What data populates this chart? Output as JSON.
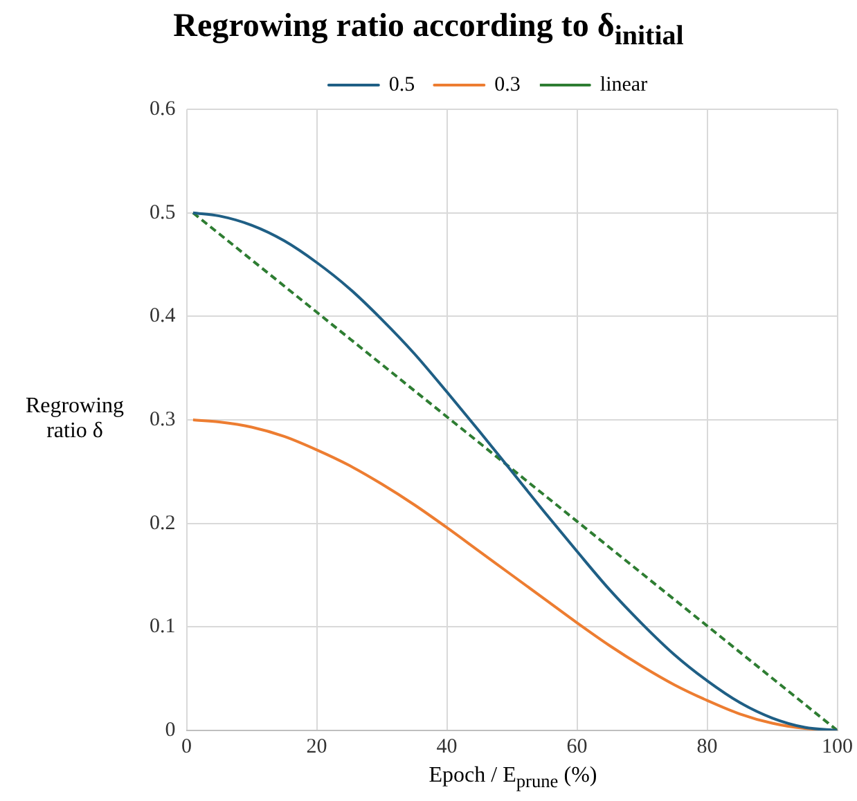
{
  "chart_data": {
    "type": "line",
    "title": "Regrowing ratio according to δ$_{initial}$",
    "xlabel": "Epoch / E$_{prune}$ (%)",
    "ylabel": "Regrowing ratio δ",
    "xlim": [
      0,
      100
    ],
    "xticks": [
      0,
      20,
      40,
      60,
      80,
      100
    ],
    "ylim": [
      0,
      0.6
    ],
    "yticks": [
      0,
      0.1,
      0.2,
      0.3,
      0.4,
      0.5,
      0.6
    ],
    "grid": true,
    "legend": "top",
    "marker": "none",
    "x": [
      1,
      5,
      10,
      15,
      20,
      25,
      30,
      35,
      40,
      45,
      50,
      55,
      60,
      65,
      70,
      75,
      80,
      85,
      90,
      95,
      100
    ],
    "series": [
      {
        "name": "0.5",
        "color": "#1f5f85",
        "line_style": "solid",
        "values": [
          0.5,
          0.497,
          0.488,
          0.473,
          0.452,
          0.427,
          0.397,
          0.364,
          0.327,
          0.289,
          0.25,
          0.211,
          0.173,
          0.136,
          0.103,
          0.073,
          0.048,
          0.027,
          0.012,
          0.003,
          0
        ]
      },
      {
        "name": "0.3",
        "color": "#ed7d31",
        "line_style": "solid",
        "values": [
          0.3,
          0.298,
          0.293,
          0.284,
          0.271,
          0.256,
          0.238,
          0.218,
          0.196,
          0.173,
          0.15,
          0.127,
          0.104,
          0.082,
          0.062,
          0.044,
          0.029,
          0.016,
          0.007,
          0.002,
          0
        ]
      },
      {
        "name": "linear",
        "color": "#2e7d32",
        "line_style": "dashed",
        "x": [
          1,
          100
        ],
        "values": [
          0.5,
          0
        ]
      }
    ]
  }
}
